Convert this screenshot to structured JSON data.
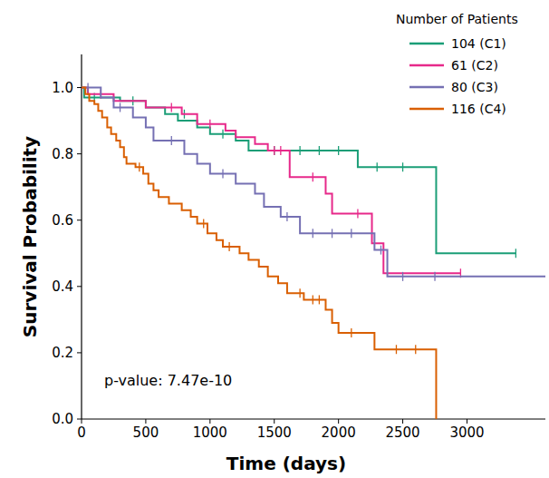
{
  "chart_data": {
    "type": "line",
    "line_style": "step",
    "x_label": "Time (days)",
    "y_label": "Survival Probability",
    "legend_title": "Number of Patients",
    "legend": "top-right",
    "annotations": [
      "p-value: 7.47e-10"
    ],
    "xlim": [
      0,
      3610
    ],
    "ylim": [
      0,
      1.1
    ],
    "xticks": [
      0,
      500,
      1000,
      1500,
      2000,
      2500,
      3000
    ],
    "yticks": [
      {
        "value": 0,
        "label": "0.0"
      },
      {
        "value": 0.2,
        "label": "0.2"
      },
      {
        "value": 0.4,
        "label": "0.4"
      },
      {
        "value": 0.6,
        "label": "0.6"
      },
      {
        "value": 0.8,
        "label": "0.8"
      },
      {
        "value": 1,
        "label": "1.0"
      }
    ],
    "series": [
      {
        "name": "104 (C1)",
        "color": "#1b9e77",
        "x": [
          0,
          20,
          300,
          500,
          650,
          750,
          900,
          1000,
          1200,
          1300,
          2150,
          2760,
          3380
        ],
        "values": [
          1,
          0.97,
          0.96,
          0.94,
          0.92,
          0.9,
          0.88,
          0.86,
          0.84,
          0.81,
          0.76,
          0.5,
          0.5
        ],
        "censor_x": [
          100,
          400,
          800,
          1100,
          1500,
          1700,
          1850,
          2000,
          2300,
          2500,
          3380
        ],
        "censor_y": [
          0.97,
          0.96,
          0.92,
          0.86,
          0.81,
          0.81,
          0.81,
          0.81,
          0.76,
          0.76,
          0.5
        ]
      },
      {
        "name": "61 (C2)",
        "color": "#e7298a",
        "x": [
          0,
          50,
          250,
          500,
          780,
          900,
          1120,
          1200,
          1350,
          1450,
          1620,
          1900,
          1950,
          2260,
          2350,
          2950
        ],
        "values": [
          1,
          0.98,
          0.96,
          0.94,
          0.92,
          0.89,
          0.87,
          0.85,
          0.83,
          0.81,
          0.73,
          0.68,
          0.62,
          0.53,
          0.44,
          0.44
        ],
        "censor_x": [
          150,
          700,
          1000,
          1500,
          1550,
          1800,
          2150,
          2950
        ],
        "censor_y": [
          0.98,
          0.94,
          0.89,
          0.81,
          0.81,
          0.73,
          0.62,
          0.44
        ]
      },
      {
        "name": "80 (C3)",
        "color": "#7570b3",
        "x": [
          0,
          150,
          250,
          400,
          500,
          560,
          800,
          900,
          1000,
          1200,
          1350,
          1420,
          1550,
          1700,
          2280,
          2380,
          3610
        ],
        "values": [
          1,
          0.97,
          0.94,
          0.91,
          0.88,
          0.84,
          0.8,
          0.77,
          0.74,
          0.71,
          0.68,
          0.64,
          0.61,
          0.56,
          0.51,
          0.43,
          0.43
        ],
        "censor_x": [
          50,
          300,
          700,
          1100,
          1600,
          1800,
          1950,
          2100,
          2330,
          2500,
          2750
        ],
        "censor_y": [
          1,
          0.94,
          0.84,
          0.74,
          0.61,
          0.56,
          0.56,
          0.56,
          0.51,
          0.43,
          0.43
        ]
      },
      {
        "name": "116 (C4)",
        "color": "#d95f02",
        "x": [
          0,
          30,
          60,
          100,
          130,
          160,
          200,
          230,
          270,
          300,
          330,
          350,
          420,
          480,
          520,
          560,
          600,
          680,
          780,
          850,
          900,
          980,
          1050,
          1100,
          1230,
          1300,
          1380,
          1450,
          1530,
          1600,
          1730,
          1900,
          1950,
          2000,
          2280,
          2760
        ],
        "values": [
          1,
          0.98,
          0.96,
          0.95,
          0.93,
          0.91,
          0.88,
          0.86,
          0.84,
          0.82,
          0.79,
          0.77,
          0.76,
          0.74,
          0.71,
          0.69,
          0.67,
          0.65,
          0.63,
          0.61,
          0.59,
          0.56,
          0.54,
          0.52,
          0.5,
          0.48,
          0.46,
          0.43,
          0.41,
          0.38,
          0.36,
          0.33,
          0.29,
          0.26,
          0.21,
          0
        ],
        "censor_x": [
          450,
          950,
          1150,
          1700,
          1800,
          1850,
          2100,
          2450,
          2600
        ],
        "censor_y": [
          0.76,
          0.59,
          0.52,
          0.38,
          0.36,
          0.36,
          0.26,
          0.21,
          0.21
        ]
      }
    ]
  }
}
